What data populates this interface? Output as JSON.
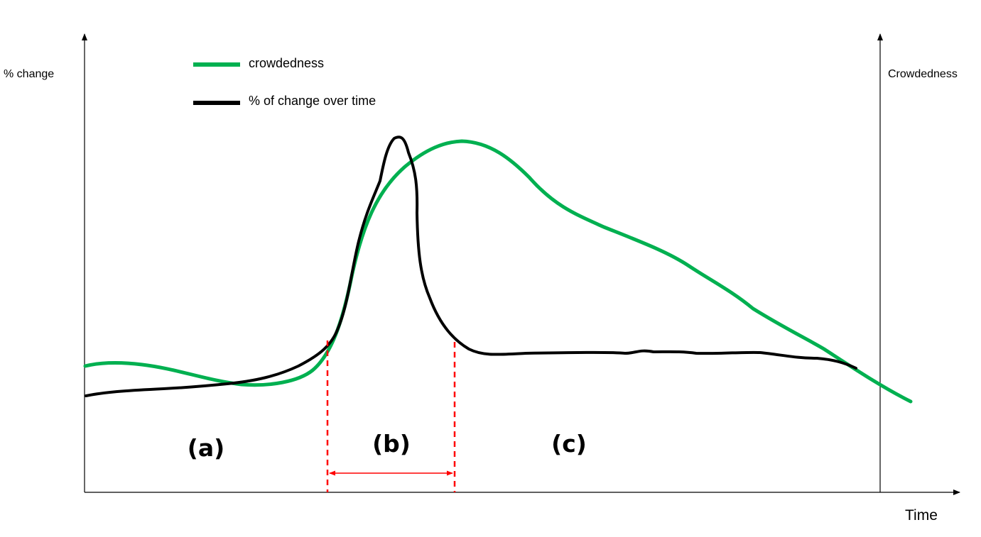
{
  "axes": {
    "left_label": "% change",
    "right_label": "Crowdedness",
    "x_label": "Time"
  },
  "legend": {
    "items": [
      {
        "label": "crowdedness",
        "color": "#00b050"
      },
      {
        "label": "% of change over time",
        "color": "#000000"
      }
    ]
  },
  "regions": {
    "a": "(a)",
    "b": "(b)",
    "c": "(c)"
  },
  "colors": {
    "crowdedness": "#00b050",
    "change": "#000000",
    "marker": "#ff0000",
    "axis": "#000000"
  }
}
